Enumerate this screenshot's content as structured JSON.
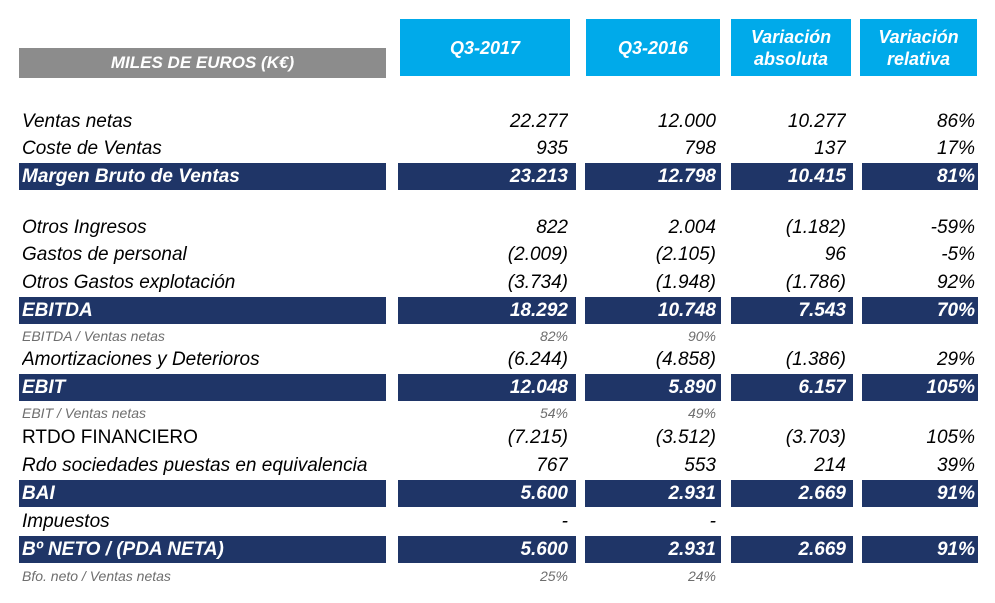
{
  "header": {
    "units_label": "MILES DE EUROS (K€)",
    "columns": [
      "Q3-2017",
      "Q3-2016",
      "Variación absoluta",
      "Variación relativa"
    ]
  },
  "rows": [
    {
      "label": "Ventas netas",
      "values": [
        "22.277",
        "12.000",
        "10.277",
        "86%"
      ]
    },
    {
      "label": "Coste de Ventas",
      "values": [
        "935",
        "798",
        "137",
        "17%"
      ]
    },
    {
      "label": "Margen Bruto de Ventas",
      "values": [
        "23.213",
        "12.798",
        "10.415",
        "81%"
      ]
    },
    {
      "label": "Otros Ingresos",
      "values": [
        "822",
        "2.004",
        "(1.182)",
        "-59%"
      ]
    },
    {
      "label": "Gastos de personal",
      "values": [
        "(2.009)",
        "(2.105)",
        "96",
        "-5%"
      ]
    },
    {
      "label": "Otros Gastos explotación",
      "values": [
        "(3.734)",
        "(1.948)",
        "(1.786)",
        "92%"
      ]
    },
    {
      "label": "EBITDA",
      "values": [
        "18.292",
        "10.748",
        "7.543",
        "70%"
      ]
    },
    {
      "label": "EBITDA / Ventas netas",
      "values": [
        "82%",
        "90%",
        "",
        ""
      ]
    },
    {
      "label": "Amortizaciones y Deterioros",
      "values": [
        "(6.244)",
        "(4.858)",
        "(1.386)",
        "29%"
      ]
    },
    {
      "label": "EBIT",
      "values": [
        "12.048",
        "5.890",
        "6.157",
        "105%"
      ]
    },
    {
      "label": "EBIT / Ventas netas",
      "values": [
        "54%",
        "49%",
        "",
        ""
      ]
    },
    {
      "label": "RTDO FINANCIERO",
      "values": [
        "(7.215)",
        "(3.512)",
        "(3.703)",
        "105%"
      ]
    },
    {
      "label": "Rdo sociedades puestas en equivalencia",
      "values": [
        "767",
        "553",
        "214",
        "39%"
      ]
    },
    {
      "label": "BAI",
      "values": [
        "5.600",
        "2.931",
        "2.669",
        "91%"
      ]
    },
    {
      "label": "Impuestos",
      "values": [
        "-",
        "-",
        "",
        ""
      ]
    },
    {
      "label": "Bº NETO / (PDA NETA)",
      "values": [
        "5.600",
        "2.931",
        "2.669",
        "91%"
      ]
    },
    {
      "label": "Bfo. neto / Ventas netas",
      "values": [
        "25%",
        "24%",
        "",
        ""
      ]
    }
  ],
  "colors": {
    "header_blue": "#00aaea",
    "header_gray": "#8c8c8c",
    "total_navy": "#1f3567"
  }
}
